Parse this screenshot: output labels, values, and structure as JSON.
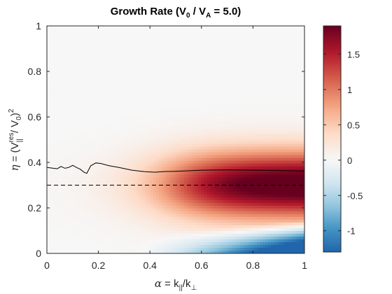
{
  "chart_data": {
    "type": "heatmap",
    "title": {
      "pre": "Growth Rate (V",
      "sub1": "0",
      "mid": " / V",
      "sub2": "A",
      "post": " = 5.0)"
    },
    "xlabel": {
      "greek": "α",
      "eq": " = k",
      "sub1": "||",
      "slash": "/k",
      "sub2": "⊥"
    },
    "ylabel": {
      "greek": "η",
      "pre": " = (V",
      "sup": "res",
      "sub": "||",
      "mid": " / V",
      "sub0": "0",
      "close": ")",
      "pow": "2"
    },
    "xlim": [
      0,
      1
    ],
    "ylim": [
      0,
      1
    ],
    "xticks": [
      0,
      0.2,
      0.4,
      0.6,
      0.8,
      1
    ],
    "xtick_labels": [
      "0",
      "0.2",
      "0.4",
      "0.6",
      "0.8",
      "1"
    ],
    "yticks": [
      0,
      0.2,
      0.4,
      0.6,
      0.8,
      1
    ],
    "ytick_labels": [
      "0",
      "0.2",
      "0.4",
      "0.6",
      "0.8",
      "1"
    ],
    "grid": false,
    "colorbar": {
      "range": [
        -1.3,
        1.9
      ],
      "ticks": [
        -1,
        -0.5,
        0,
        0.5,
        1,
        1.5
      ],
      "tick_labels": [
        "-1",
        "-0.5",
        "0",
        "0.5",
        "1",
        "1.5"
      ],
      "colormap": [
        "#2166ac",
        "#4393c3",
        "#92c5de",
        "#d1e5f0",
        "#f7f7f7",
        "#fddbc7",
        "#f4a582",
        "#d6604d",
        "#b2182b",
        "#67001f"
      ]
    },
    "solid_curve": {
      "color": "#000000",
      "x": [
        0.0,
        0.02,
        0.04,
        0.055,
        0.07,
        0.085,
        0.1,
        0.115,
        0.13,
        0.145,
        0.155,
        0.17,
        0.19,
        0.21,
        0.24,
        0.28,
        0.33,
        0.38,
        0.42,
        0.46,
        0.5,
        0.55,
        0.6,
        0.7,
        0.8,
        0.9,
        1.0
      ],
      "y": [
        0.378,
        0.375,
        0.372,
        0.382,
        0.374,
        0.378,
        0.387,
        0.378,
        0.37,
        0.356,
        0.352,
        0.385,
        0.398,
        0.395,
        0.386,
        0.378,
        0.366,
        0.359,
        0.357,
        0.36,
        0.361,
        0.363,
        0.366,
        0.367,
        0.366,
        0.364,
        0.362
      ]
    },
    "dashed_line": {
      "color": "#000000",
      "y": 0.3
    }
  }
}
